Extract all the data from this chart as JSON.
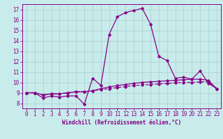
{
  "xlabel": "Windchill (Refroidissement éolien,°C)",
  "background_color": "#c8ecec",
  "line_color": "#880088",
  "grid_color": "#aacccc",
  "x": [
    0,
    1,
    2,
    3,
    4,
    5,
    6,
    7,
    8,
    9,
    10,
    11,
    12,
    13,
    14,
    15,
    16,
    17,
    18,
    19,
    20,
    21,
    22,
    23
  ],
  "line1": [
    9.0,
    9.0,
    8.5,
    8.7,
    8.6,
    8.7,
    8.7,
    7.9,
    10.4,
    9.7,
    14.6,
    16.3,
    16.7,
    16.9,
    17.1,
    15.6,
    12.5,
    12.1,
    10.4,
    10.5,
    10.3,
    11.1,
    9.9,
    9.4
  ],
  "line2": [
    9.0,
    9.0,
    8.8,
    8.9,
    8.9,
    9.0,
    9.1,
    9.1,
    9.2,
    9.3,
    9.4,
    9.5,
    9.6,
    9.7,
    9.75,
    9.8,
    9.85,
    9.9,
    9.95,
    10.0,
    10.0,
    10.05,
    10.05,
    9.4
  ],
  "line3": [
    9.0,
    9.0,
    8.8,
    8.9,
    8.9,
    9.0,
    9.1,
    9.1,
    9.2,
    9.4,
    9.55,
    9.7,
    9.8,
    9.9,
    10.0,
    10.05,
    10.1,
    10.15,
    10.2,
    10.25,
    10.3,
    10.3,
    10.2,
    9.4
  ],
  "ylim": [
    7.5,
    17.5
  ],
  "xlim": [
    -0.5,
    23.5
  ],
  "yticks": [
    8,
    9,
    10,
    11,
    12,
    13,
    14,
    15,
    16,
    17
  ],
  "xticks": [
    0,
    1,
    2,
    3,
    4,
    5,
    6,
    7,
    8,
    9,
    10,
    11,
    12,
    13,
    14,
    15,
    16,
    17,
    18,
    19,
    20,
    21,
    22,
    23
  ],
  "tick_fontsize": 5.5,
  "xlabel_fontsize": 5.5
}
